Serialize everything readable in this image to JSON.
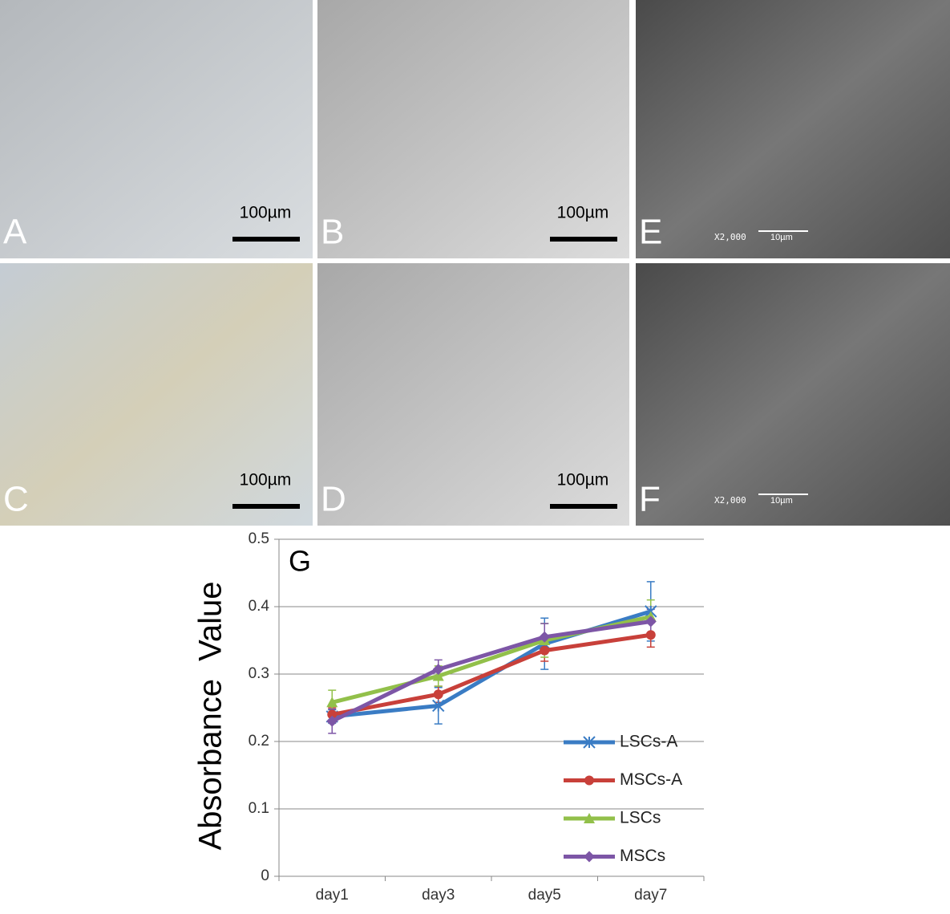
{
  "panels": [
    {
      "label": "A",
      "scale": "100µm"
    },
    {
      "label": "B",
      "scale": "100µm"
    },
    {
      "label": "E",
      "magnification": "X2,000",
      "scale": "10µm"
    },
    {
      "label": "C",
      "scale": "100µm"
    },
    {
      "label": "D",
      "scale": "100µm"
    },
    {
      "label": "F",
      "magnification": "X2,000",
      "scale": "10µm"
    }
  ],
  "chart_data": {
    "type": "line",
    "panel_label": "G",
    "y_label": "Absorbance  Value",
    "categories": [
      "day1",
      "day3",
      "day5",
      "day7"
    ],
    "ylim": [
      0,
      0.5
    ],
    "yticks": [
      0,
      0.1,
      0.2,
      0.3,
      0.4,
      0.5
    ],
    "grid": true,
    "legend": "lower right",
    "series": [
      {
        "name": "LSCs-A",
        "color": "#3a7cc4",
        "marker": "x",
        "values": [
          0.237,
          0.253,
          0.345,
          0.393
        ],
        "errors": [
          0.01,
          0.027,
          0.038,
          0.044
        ]
      },
      {
        "name": "MSCs-A",
        "color": "#c8403a",
        "marker": "circle",
        "values": [
          0.24,
          0.27,
          0.335,
          0.358
        ],
        "errors": [
          0.01,
          0.012,
          0.016,
          0.018
        ]
      },
      {
        "name": "LSCs",
        "color": "#92c04a",
        "marker": "triangle",
        "values": [
          0.258,
          0.297,
          0.35,
          0.385
        ],
        "errors": [
          0.018,
          0.015,
          0.025,
          0.025
        ]
      },
      {
        "name": "MSCs",
        "color": "#7d56a6",
        "marker": "diamond",
        "values": [
          0.23,
          0.307,
          0.355,
          0.378
        ],
        "errors": [
          0.018,
          0.014,
          0.02,
          0.018
        ]
      }
    ]
  }
}
